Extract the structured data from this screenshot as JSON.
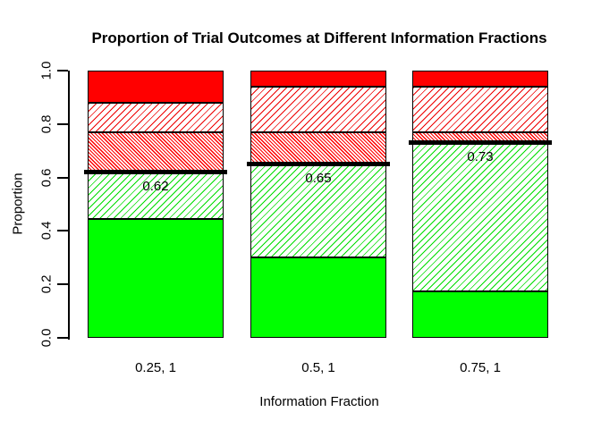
{
  "chart_data": {
    "type": "bar",
    "stacked": true,
    "title": "Proportion of Trial Outcomes at Different Information Fractions",
    "xlabel": "Information Fraction",
    "ylabel": "Proportion",
    "ylim": [
      0,
      1
    ],
    "grid": false,
    "legend": "none",
    "yticks": [
      0.0,
      0.2,
      0.4,
      0.6,
      0.8,
      1.0
    ],
    "ytick_labels": [
      "0.0",
      "0.2",
      "0.4",
      "0.6",
      "0.8",
      "1.0"
    ],
    "categories": [
      "0.25, 1",
      "0.5, 1",
      "0.75, 1"
    ],
    "series": [
      {
        "name": "solid-green",
        "pattern": "solid",
        "color": "#00FF00",
        "values": [
          0.445,
          0.3,
          0.175
        ]
      },
      {
        "name": "green-hatch",
        "pattern": "hatch-up",
        "color": "#00DD00",
        "values": [
          0.175,
          0.35,
          0.555
        ]
      },
      {
        "name": "dense-red-hatch",
        "pattern": "hatch-down-dense",
        "color": "#FF0000",
        "values": [
          0.15,
          0.12,
          0.04
        ]
      },
      {
        "name": "light-red-hatch",
        "pattern": "hatch-up",
        "color": "#EE0000",
        "values": [
          0.11,
          0.17,
          0.17
        ]
      },
      {
        "name": "solid-red",
        "pattern": "solid",
        "color": "#FF0000",
        "values": [
          0.12,
          0.06,
          0.06
        ]
      }
    ],
    "threshold_lines": {
      "values": [
        0.62,
        0.65,
        0.73
      ],
      "labels": [
        "0.62",
        "0.65",
        "0.73"
      ],
      "color": "#000000"
    },
    "colors": {
      "solid_green": "#00FF00",
      "solid_red": "#FF0000",
      "axis": "#000000",
      "background": "#FFFFFF"
    }
  }
}
